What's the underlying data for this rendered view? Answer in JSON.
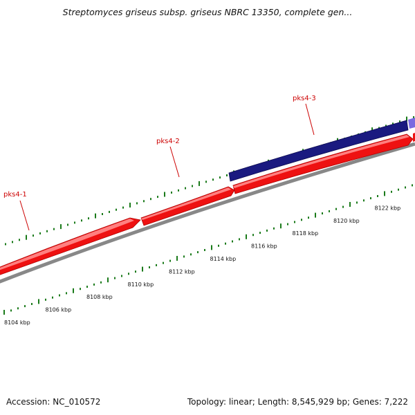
{
  "map": {
    "title": "Streptomyces griseus subsp. griseus NBRC 13350, complete gen...",
    "accession_label": "Accession: NC_010572",
    "info_label": "Topology: linear; Length: 8,545,929 bp; Genes: 7,222"
  },
  "genes": [
    {
      "name": "pks4-1"
    },
    {
      "name": "pks4-2"
    },
    {
      "name": "pks4-3"
    }
  ],
  "scale": {
    "labels": [
      "8104 kbp",
      "8106 kbp",
      "8108 kbp",
      "8110 kbp",
      "8112 kbp",
      "8114 kbp",
      "8116 kbp",
      "8118 kbp",
      "8120 kbp",
      "8122 kbp"
    ]
  },
  "colors": {
    "gene_fill": "#ee1111",
    "gene_highlight": "#ff8080",
    "feature_fill": "#1a1a80",
    "feature_light": "#7a6ae0",
    "backbone": "#888888",
    "tick": "#1a7a1a",
    "gene_label": "#cc0000"
  }
}
